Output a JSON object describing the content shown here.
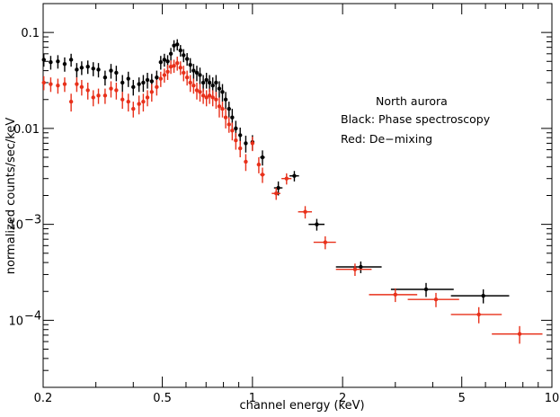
{
  "chart_data": {
    "type": "scatter",
    "xlabel": "channel energy (keV)",
    "ylabel": "normalized counts/sec/keV",
    "xscale": "log",
    "yscale": "log",
    "xlim": [
      0.2,
      10
    ],
    "ylim": [
      2e-05,
      0.2
    ],
    "x_ticks": [
      {
        "value": 0.2,
        "label": "0.2"
      },
      {
        "value": 0.5,
        "label": "0.5"
      },
      {
        "value": 1,
        "label": "1"
      },
      {
        "value": 2,
        "label": "2"
      },
      {
        "value": 5,
        "label": "5"
      },
      {
        "value": 10,
        "label": "10"
      }
    ],
    "y_ticks": [
      {
        "value": 0.1,
        "label": "0.1",
        "exp": ""
      },
      {
        "value": 0.01,
        "label": "0.01",
        "exp": ""
      },
      {
        "value": 0.001,
        "label": "10",
        "exp": "−3"
      },
      {
        "value": 0.0001,
        "label": "10",
        "exp": "−4"
      }
    ],
    "annotations": [
      "North aurora",
      "Black: Phase spectroscopy",
      "Red: De−mixing"
    ],
    "grid": false,
    "series": [
      {
        "color": "#000000",
        "points": [
          [
            0.201,
            0.052,
            0.003,
            0.008
          ],
          [
            0.212,
            0.049,
            0.003,
            0.008
          ],
          [
            0.224,
            0.05,
            0.003,
            0.008
          ],
          [
            0.236,
            0.047,
            0.003,
            0.008
          ],
          [
            0.248,
            0.052,
            0.003,
            0.008
          ],
          [
            0.259,
            0.041,
            0.003,
            0.007
          ],
          [
            0.269,
            0.043,
            0.003,
            0.007
          ],
          [
            0.282,
            0.044,
            0.003,
            0.007
          ],
          [
            0.294,
            0.042,
            0.003,
            0.007
          ],
          [
            0.306,
            0.041,
            0.003,
            0.007
          ],
          [
            0.322,
            0.034,
            0.003,
            0.006
          ],
          [
            0.337,
            0.04,
            0.003,
            0.007
          ],
          [
            0.351,
            0.038,
            0.003,
            0.007
          ],
          [
            0.368,
            0.03,
            0.003,
            0.006
          ],
          [
            0.385,
            0.033,
            0.003,
            0.006
          ],
          [
            0.4,
            0.027,
            0.003,
            0.005
          ],
          [
            0.418,
            0.029,
            0.003,
            0.005
          ],
          [
            0.432,
            0.03,
            0.003,
            0.006
          ],
          [
            0.446,
            0.032,
            0.003,
            0.006
          ],
          [
            0.461,
            0.031,
            0.003,
            0.006
          ],
          [
            0.479,
            0.034,
            0.003,
            0.006
          ],
          [
            0.494,
            0.049,
            0.003,
            0.008
          ],
          [
            0.508,
            0.052,
            0.003,
            0.008
          ],
          [
            0.521,
            0.05,
            0.003,
            0.008
          ],
          [
            0.534,
            0.06,
            0.003,
            0.009
          ],
          [
            0.547,
            0.073,
            0.003,
            0.01
          ],
          [
            0.561,
            0.075,
            0.003,
            0.01
          ],
          [
            0.575,
            0.065,
            0.003,
            0.009
          ],
          [
            0.589,
            0.058,
            0.003,
            0.009
          ],
          [
            0.605,
            0.053,
            0.003,
            0.008
          ],
          [
            0.62,
            0.046,
            0.003,
            0.008
          ],
          [
            0.636,
            0.04,
            0.003,
            0.007
          ],
          [
            0.652,
            0.038,
            0.003,
            0.007
          ],
          [
            0.668,
            0.036,
            0.003,
            0.007
          ],
          [
            0.685,
            0.03,
            0.003,
            0.006
          ],
          [
            0.702,
            0.032,
            0.003,
            0.006
          ],
          [
            0.719,
            0.03,
            0.003,
            0.006
          ],
          [
            0.737,
            0.028,
            0.003,
            0.006
          ],
          [
            0.756,
            0.03,
            0.003,
            0.006
          ],
          [
            0.775,
            0.026,
            0.003,
            0.005
          ],
          [
            0.794,
            0.024,
            0.003,
            0.005
          ],
          [
            0.814,
            0.02,
            0.003,
            0.004
          ],
          [
            0.835,
            0.016,
            0.003,
            0.003
          ],
          [
            0.856,
            0.013,
            0.003,
            0.003
          ],
          [
            0.88,
            0.01,
            0.004,
            0.002
          ],
          [
            0.91,
            0.0085,
            0.006,
            0.0017
          ],
          [
            0.95,
            0.007,
            0.008,
            0.0014
          ],
          [
            1.0,
            0.0072,
            0.012,
            0.0013
          ],
          [
            1.08,
            0.005,
            0.02,
            0.0009
          ],
          [
            1.22,
            0.0024,
            0.04,
            0.0004
          ],
          [
            1.38,
            0.0032,
            0.05,
            0.0004
          ],
          [
            1.64,
            0.001,
            0.1,
            0.00014
          ],
          [
            2.3,
            0.00036,
            0.4,
            5e-05
          ],
          [
            3.8,
            0.00021,
            0.9,
            3.5e-05
          ],
          [
            5.9,
            0.00018,
            1.3,
            3e-05
          ]
        ]
      },
      {
        "color": "#e8301a",
        "points": [
          [
            0.201,
            0.03,
            0.003,
            0.005
          ],
          [
            0.212,
            0.029,
            0.003,
            0.005
          ],
          [
            0.224,
            0.028,
            0.003,
            0.005
          ],
          [
            0.236,
            0.029,
            0.003,
            0.005
          ],
          [
            0.248,
            0.019,
            0.003,
            0.004
          ],
          [
            0.259,
            0.029,
            0.003,
            0.005
          ],
          [
            0.269,
            0.027,
            0.003,
            0.005
          ],
          [
            0.282,
            0.025,
            0.003,
            0.005
          ],
          [
            0.294,
            0.021,
            0.003,
            0.004
          ],
          [
            0.306,
            0.022,
            0.003,
            0.004
          ],
          [
            0.322,
            0.022,
            0.003,
            0.004
          ],
          [
            0.337,
            0.026,
            0.003,
            0.005
          ],
          [
            0.351,
            0.025,
            0.003,
            0.005
          ],
          [
            0.368,
            0.02,
            0.003,
            0.004
          ],
          [
            0.385,
            0.019,
            0.003,
            0.004
          ],
          [
            0.4,
            0.016,
            0.003,
            0.003
          ],
          [
            0.418,
            0.018,
            0.003,
            0.004
          ],
          [
            0.432,
            0.019,
            0.003,
            0.004
          ],
          [
            0.446,
            0.021,
            0.003,
            0.004
          ],
          [
            0.461,
            0.024,
            0.003,
            0.005
          ],
          [
            0.479,
            0.027,
            0.003,
            0.005
          ],
          [
            0.494,
            0.033,
            0.003,
            0.006
          ],
          [
            0.508,
            0.036,
            0.003,
            0.006
          ],
          [
            0.521,
            0.039,
            0.003,
            0.007
          ],
          [
            0.534,
            0.044,
            0.003,
            0.007
          ],
          [
            0.547,
            0.045,
            0.003,
            0.007
          ],
          [
            0.561,
            0.048,
            0.003,
            0.008
          ],
          [
            0.575,
            0.043,
            0.003,
            0.007
          ],
          [
            0.589,
            0.038,
            0.003,
            0.007
          ],
          [
            0.605,
            0.034,
            0.003,
            0.006
          ],
          [
            0.62,
            0.03,
            0.003,
            0.006
          ],
          [
            0.636,
            0.028,
            0.003,
            0.005
          ],
          [
            0.652,
            0.025,
            0.003,
            0.005
          ],
          [
            0.668,
            0.024,
            0.003,
            0.005
          ],
          [
            0.685,
            0.022,
            0.003,
            0.004
          ],
          [
            0.702,
            0.021,
            0.003,
            0.004
          ],
          [
            0.719,
            0.022,
            0.003,
            0.004
          ],
          [
            0.737,
            0.021,
            0.003,
            0.004
          ],
          [
            0.756,
            0.02,
            0.003,
            0.004
          ],
          [
            0.775,
            0.017,
            0.003,
            0.004
          ],
          [
            0.794,
            0.016,
            0.003,
            0.003
          ],
          [
            0.814,
            0.013,
            0.003,
            0.003
          ],
          [
            0.835,
            0.011,
            0.003,
            0.002
          ],
          [
            0.856,
            0.0095,
            0.003,
            0.002
          ],
          [
            0.88,
            0.0075,
            0.004,
            0.0015
          ],
          [
            0.91,
            0.0062,
            0.006,
            0.0012
          ],
          [
            0.95,
            0.0045,
            0.008,
            0.0009
          ],
          [
            1.0,
            0.007,
            0.012,
            0.0012
          ],
          [
            1.05,
            0.0042,
            0.015,
            0.0008
          ],
          [
            1.08,
            0.0033,
            0.02,
            0.0006
          ],
          [
            1.2,
            0.0021,
            0.04,
            0.0003
          ],
          [
            1.3,
            0.003,
            0.05,
            0.0004
          ],
          [
            1.5,
            0.00135,
            0.08,
            0.0002
          ],
          [
            1.75,
            0.00065,
            0.15,
            0.0001
          ],
          [
            2.2,
            0.00034,
            0.3,
            5e-05
          ],
          [
            3.0,
            0.000185,
            0.55,
            3e-05
          ],
          [
            4.1,
            0.000165,
            0.8,
            2.8e-05
          ],
          [
            5.7,
            0.000115,
            1.1,
            2.2e-05
          ],
          [
            7.8,
            7.2e-05,
            1.5,
            1.5e-05
          ]
        ]
      }
    ]
  }
}
